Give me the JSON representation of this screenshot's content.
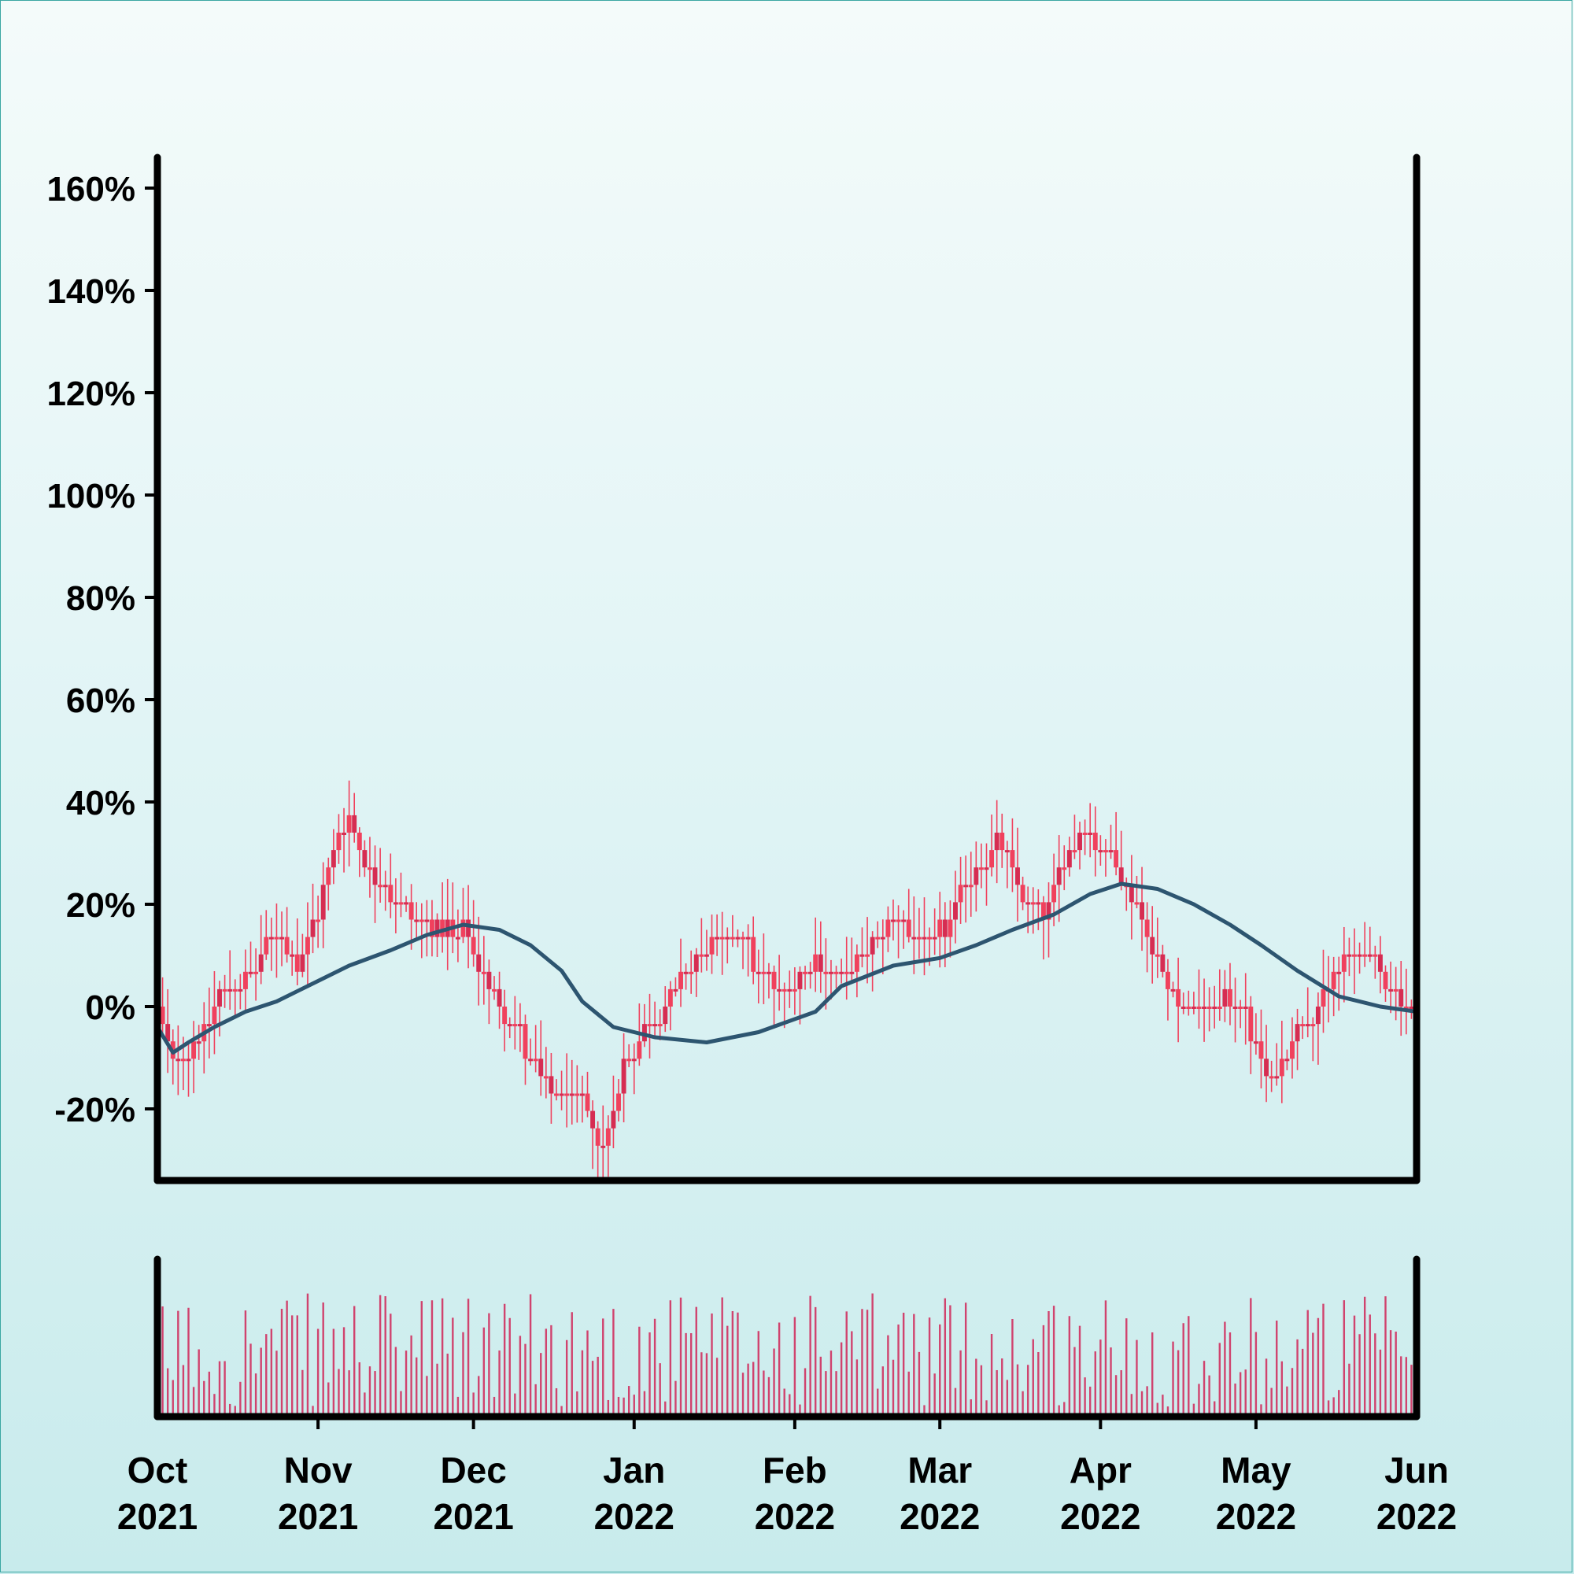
{
  "chart_data": {
    "type": "candlestick",
    "title": "",
    "xlabel": "",
    "ylabel": "",
    "y_axis": {
      "unit": "%",
      "ylim": [
        -34,
        166
      ],
      "ticks": [
        -20,
        0,
        20,
        40,
        60,
        80,
        100,
        120,
        140,
        160
      ],
      "tick_labels": [
        "-20%",
        "0%",
        "20%",
        "40%",
        "60%",
        "80%",
        "100%",
        "120%",
        "140%",
        "160%"
      ]
    },
    "x_axis": {
      "range": [
        "2021-10-01",
        "2022-06-01"
      ],
      "ticks": [
        {
          "date": "2021-10-01",
          "month": "Oct",
          "year": "2021"
        },
        {
          "date": "2021-11-01",
          "month": "Nov",
          "year": "2021"
        },
        {
          "date": "2021-12-01",
          "month": "Dec",
          "year": "2021"
        },
        {
          "date": "2022-01-01",
          "month": "Jan",
          "year": "2022"
        },
        {
          "date": "2022-02-01",
          "month": "Feb",
          "year": "2022"
        },
        {
          "date": "2022-03-01",
          "month": "Mar",
          "year": "2022"
        },
        {
          "date": "2022-04-01",
          "month": "Apr",
          "year": "2022"
        },
        {
          "date": "2022-05-01",
          "month": "May",
          "year": "2022"
        },
        {
          "date": "2022-06-01",
          "month": "Jun",
          "year": "2022"
        }
      ]
    },
    "price_path": [
      {
        "date": "2021-10-01",
        "value": 0
      },
      {
        "date": "2021-10-04",
        "value": -12
      },
      {
        "date": "2021-10-08",
        "value": -8
      },
      {
        "date": "2021-10-13",
        "value": 2
      },
      {
        "date": "2021-10-19",
        "value": 6
      },
      {
        "date": "2021-10-24",
        "value": 15
      },
      {
        "date": "2021-10-28",
        "value": 8
      },
      {
        "date": "2021-11-01",
        "value": 18
      },
      {
        "date": "2021-11-05",
        "value": 33
      },
      {
        "date": "2021-11-07",
        "value": 37
      },
      {
        "date": "2021-11-10",
        "value": 27
      },
      {
        "date": "2021-11-15",
        "value": 22
      },
      {
        "date": "2021-11-20",
        "value": 18
      },
      {
        "date": "2021-11-25",
        "value": 15
      },
      {
        "date": "2021-11-30",
        "value": 14
      },
      {
        "date": "2021-12-04",
        "value": 3
      },
      {
        "date": "2021-12-08",
        "value": -2
      },
      {
        "date": "2021-12-12",
        "value": -10
      },
      {
        "date": "2021-12-16",
        "value": -16
      },
      {
        "date": "2021-12-22",
        "value": -18
      },
      {
        "date": "2021-12-26",
        "value": -28
      },
      {
        "date": "2021-12-30",
        "value": -12
      },
      {
        "date": "2022-01-04",
        "value": -4
      },
      {
        "date": "2022-01-08",
        "value": 2
      },
      {
        "date": "2022-01-12",
        "value": 8
      },
      {
        "date": "2022-01-16",
        "value": 12
      },
      {
        "date": "2022-01-22",
        "value": 15
      },
      {
        "date": "2022-01-25",
        "value": 6
      },
      {
        "date": "2022-01-30",
        "value": 2
      },
      {
        "date": "2022-02-05",
        "value": 10
      },
      {
        "date": "2022-02-10",
        "value": 6
      },
      {
        "date": "2022-02-16",
        "value": 12
      },
      {
        "date": "2022-02-21",
        "value": 17
      },
      {
        "date": "2022-02-26",
        "value": 12
      },
      {
        "date": "2022-03-02",
        "value": 16
      },
      {
        "date": "2022-03-08",
        "value": 27
      },
      {
        "date": "2022-03-12",
        "value": 32
      },
      {
        "date": "2022-03-17",
        "value": 22
      },
      {
        "date": "2022-03-21",
        "value": 18
      },
      {
        "date": "2022-03-25",
        "value": 30
      },
      {
        "date": "2022-03-29",
        "value": 35
      },
      {
        "date": "2022-04-03",
        "value": 30
      },
      {
        "date": "2022-04-07",
        "value": 22
      },
      {
        "date": "2022-04-12",
        "value": 8
      },
      {
        "date": "2022-04-17",
        "value": 0
      },
      {
        "date": "2022-04-22",
        "value": 0
      },
      {
        "date": "2022-04-27",
        "value": 2
      },
      {
        "date": "2022-05-01",
        "value": -8
      },
      {
        "date": "2022-05-04",
        "value": -15
      },
      {
        "date": "2022-05-09",
        "value": -5
      },
      {
        "date": "2022-05-13",
        "value": 0
      },
      {
        "date": "2022-05-17",
        "value": 8
      },
      {
        "date": "2022-05-21",
        "value": 12
      },
      {
        "date": "2022-05-26",
        "value": 4
      },
      {
        "date": "2022-06-01",
        "value": -2
      }
    ],
    "moving_average": [
      {
        "date": "2021-10-01",
        "value": -4
      },
      {
        "date": "2021-10-04",
        "value": -9
      },
      {
        "date": "2021-10-07",
        "value": -7
      },
      {
        "date": "2021-10-12",
        "value": -4
      },
      {
        "date": "2021-10-18",
        "value": -1
      },
      {
        "date": "2021-10-24",
        "value": 1
      },
      {
        "date": "2021-10-30",
        "value": 4
      },
      {
        "date": "2021-11-07",
        "value": 8
      },
      {
        "date": "2021-11-15",
        "value": 11
      },
      {
        "date": "2021-11-22",
        "value": 14
      },
      {
        "date": "2021-11-29",
        "value": 16
      },
      {
        "date": "2021-12-06",
        "value": 15
      },
      {
        "date": "2021-12-12",
        "value": 12
      },
      {
        "date": "2021-12-18",
        "value": 7
      },
      {
        "date": "2021-12-22",
        "value": 1
      },
      {
        "date": "2021-12-28",
        "value": -4
      },
      {
        "date": "2022-01-05",
        "value": -6
      },
      {
        "date": "2022-01-15",
        "value": -7
      },
      {
        "date": "2022-01-25",
        "value": -5
      },
      {
        "date": "2022-02-05",
        "value": -1
      },
      {
        "date": "2022-02-10",
        "value": 4
      },
      {
        "date": "2022-02-20",
        "value": 8
      },
      {
        "date": "2022-03-01",
        "value": 9.5
      },
      {
        "date": "2022-03-08",
        "value": 12
      },
      {
        "date": "2022-03-15",
        "value": 15
      },
      {
        "date": "2022-03-23",
        "value": 18
      },
      {
        "date": "2022-03-30",
        "value": 22
      },
      {
        "date": "2022-04-05",
        "value": 24
      },
      {
        "date": "2022-04-12",
        "value": 23
      },
      {
        "date": "2022-04-19",
        "value": 20
      },
      {
        "date": "2022-04-26",
        "value": 16
      },
      {
        "date": "2022-05-02",
        "value": 12
      },
      {
        "date": "2022-05-09",
        "value": 7
      },
      {
        "date": "2022-05-17",
        "value": 2
      },
      {
        "date": "2022-05-25",
        "value": 0
      },
      {
        "date": "2022-06-01",
        "value": -1
      }
    ],
    "volume": {
      "shown": true,
      "scale": "relative (no axis labels)"
    },
    "grid": false,
    "legend": "none",
    "colors": {
      "candle": "#f0415d",
      "candle_dark": "#d62d52",
      "moving_average": "#2d5570",
      "volume": "#d0436e",
      "axis": "#000000",
      "frame_border": "#3aa7a2"
    }
  }
}
